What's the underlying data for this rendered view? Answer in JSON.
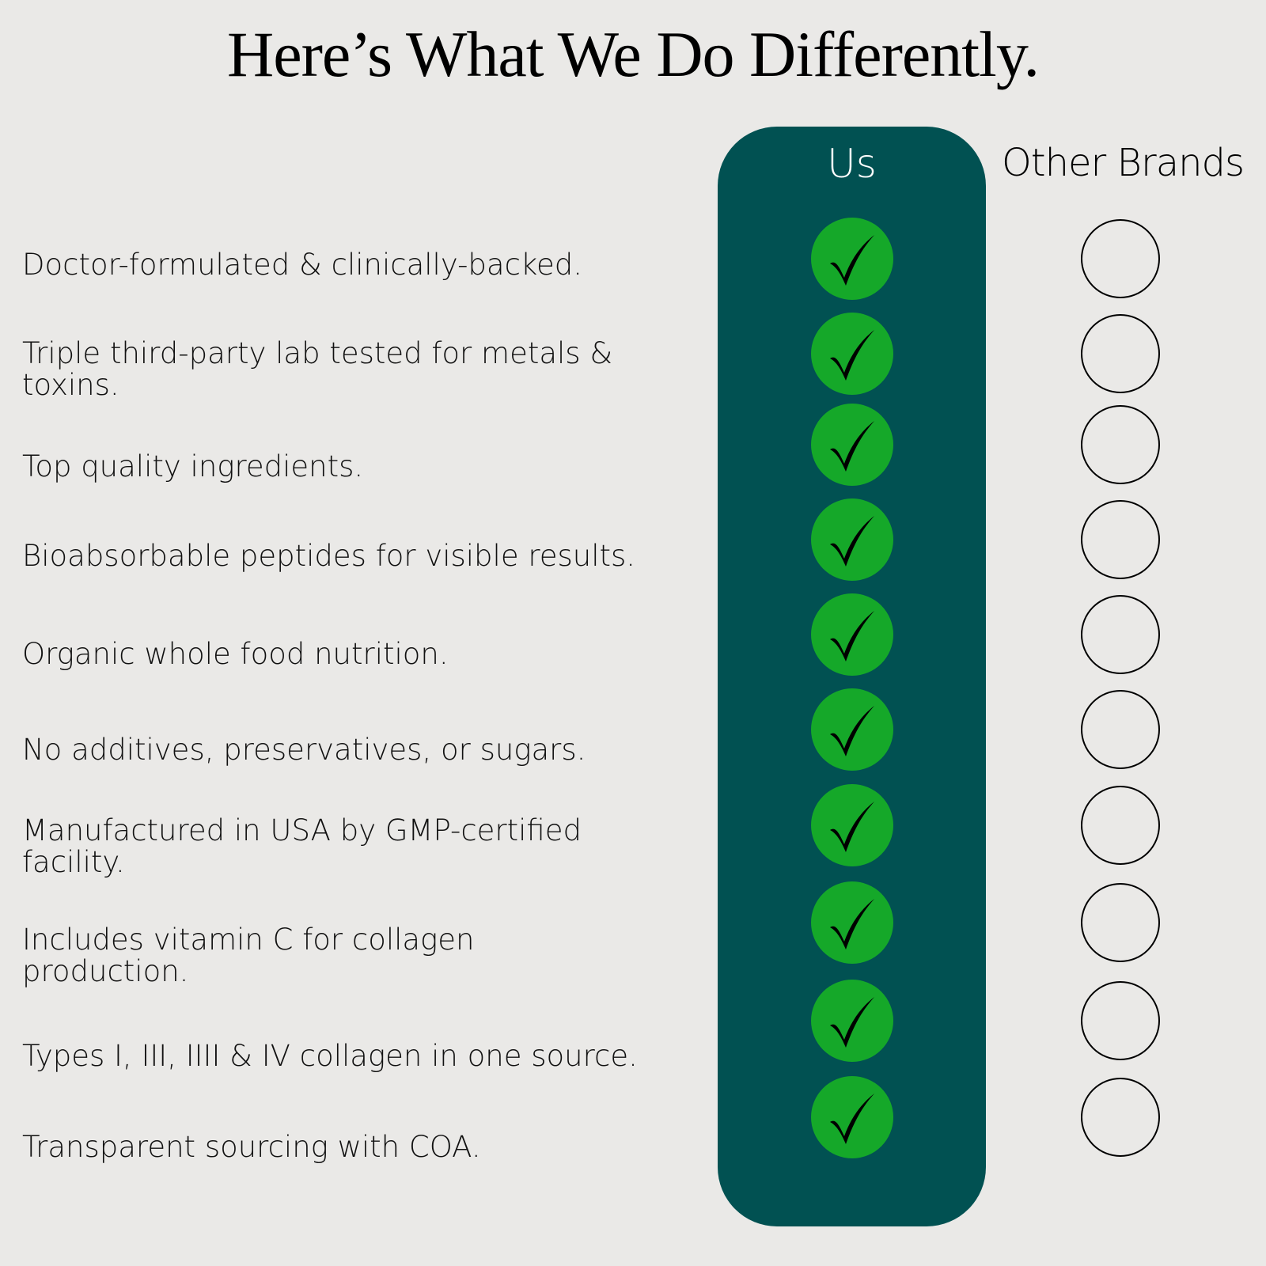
{
  "title": "Here’s What We Do Differently.",
  "columns": {
    "us": "Us",
    "other": "Other Brands"
  },
  "colors": {
    "background": "#eae9e7",
    "us_panel": "#015152",
    "check_circle": "#15a829"
  },
  "icons": {
    "us": "checkmark-circle-icon",
    "other": "empty-circle-icon"
  },
  "rows": [
    {
      "label": "Doctor-formulated & clinically-backed."
    },
    {
      "label": "Triple third-party lab tested for metals & toxins."
    },
    {
      "label": "Top quality ingredients."
    },
    {
      "label": "Bioabsorbable peptides for visible results."
    },
    {
      "label": "Organic whole food nutrition."
    },
    {
      "label": "No additives, preservatives, or sugars."
    },
    {
      "label": "Manufactured in USA by GMP-certified facility."
    },
    {
      "label": "Includes vitamin C for collagen production."
    },
    {
      "label": "Types I, III, IIII & IV collagen in one source."
    },
    {
      "label": "Transparent sourcing with COA."
    }
  ]
}
